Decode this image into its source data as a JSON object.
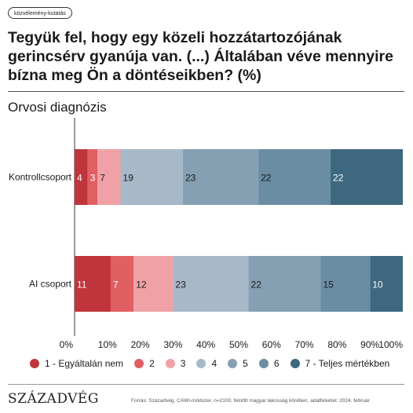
{
  "tag": "közvélemény-kutatás",
  "title": "Tegyük fel, hogy egy közeli hozzátartozójának gerincsérv gyanúja van. (...) Általában véve mennyire bízna meg Ön a döntéseikben? (%)",
  "subtitle": "Orvosi diagnózis",
  "chart_data": {
    "type": "bar",
    "orientation": "horizontal",
    "stacked": true,
    "categories": [
      "Kontrollcsoport",
      "AI csoport"
    ],
    "series": [
      {
        "name": "1 - Egyáltalán nem",
        "color": "#c0353c",
        "values": [
          4,
          11
        ]
      },
      {
        "name": "2",
        "color": "#e05f63",
        "values": [
          3,
          7
        ]
      },
      {
        "name": "3",
        "color": "#f0a1a6",
        "values": [
          7,
          12
        ]
      },
      {
        "name": "4",
        "color": "#a7b8c9",
        "values": [
          19,
          23
        ]
      },
      {
        "name": "5",
        "color": "#859fb3",
        "values": [
          23,
          22
        ]
      },
      {
        "name": "6",
        "color": "#6a8da3",
        "values": [
          22,
          15
        ]
      },
      {
        "name": "7 - Teljes mértékben",
        "color": "#3d6880",
        "values": [
          22,
          10
        ]
      }
    ],
    "xlim": [
      0,
      100
    ],
    "x_ticks": [
      "0%",
      "10%",
      "20%",
      "30%",
      "40%",
      "50%",
      "60%",
      "70%",
      "80%",
      "90%",
      "100%"
    ],
    "legend": "bottom",
    "grid": false
  },
  "footer": {
    "logo": "SZÁZADVÉG",
    "source": "Forrás: Századvég, CAWI-módszer, n=2100, felnőtt magyar lakosság körében, adatfelvétel: 2024. február"
  }
}
